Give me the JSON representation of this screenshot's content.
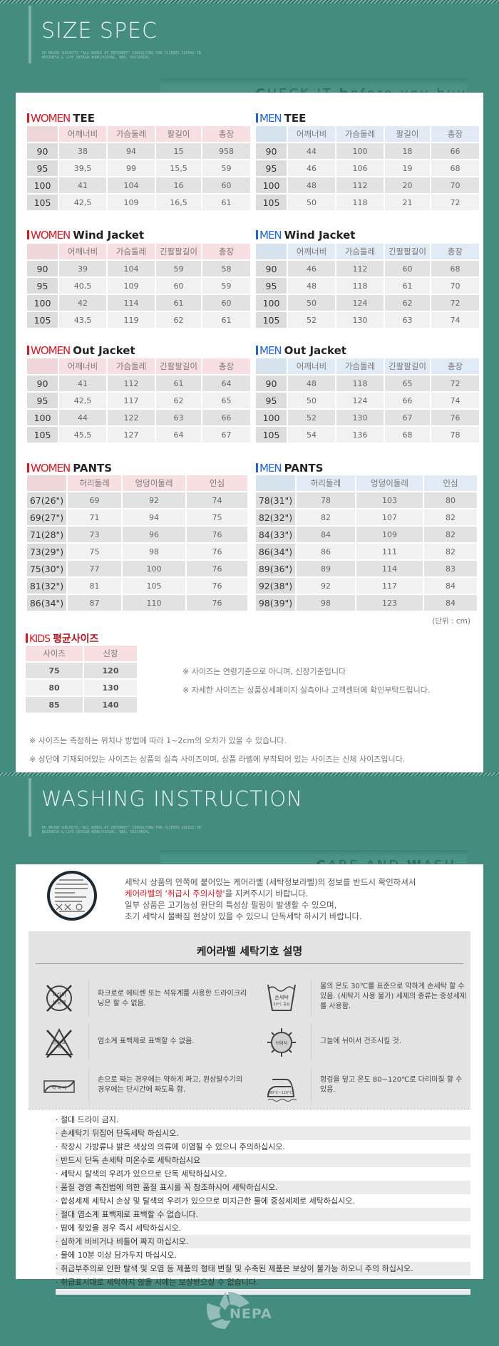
{
  "size_header": {
    "title": "SIZE SPEC",
    "tagline": "DO MAJOR SUBJECTS \"ALL WORKS AT INTERNET\" CONSULTING FOR CLIENTS SUCESS IN BUSINESS & LIFE DESIGN WORK/VISUAL, WEB, EDITORIAL",
    "band_first": "C",
    "band_mid": "HECK IT ",
    "band_b": "b",
    "band_rest": "efore you buy"
  },
  "tables": {
    "women_tee": {
      "group": "WOMEN",
      "name": "TEE",
      "headers": [
        "",
        "어깨너비",
        "가슴둘레",
        "팔길이",
        "총장"
      ],
      "rows": [
        [
          "90",
          "38",
          "94",
          "15",
          "958"
        ],
        [
          "95",
          "39,5",
          "99",
          "15,5",
          "59"
        ],
        [
          "100",
          "41",
          "104",
          "16",
          "60"
        ],
        [
          "105",
          "42,5",
          "109",
          "16,5",
          "61"
        ]
      ]
    },
    "men_tee": {
      "group": "MEN",
      "name": "TEE",
      "headers": [
        "",
        "어깨너비",
        "가슴둘레",
        "팔길이",
        "총장"
      ],
      "rows": [
        [
          "90",
          "44",
          "100",
          "18",
          "66"
        ],
        [
          "95",
          "46",
          "106",
          "19",
          "68"
        ],
        [
          "100",
          "48",
          "112",
          "20",
          "70"
        ],
        [
          "105",
          "50",
          "118",
          "21",
          "72"
        ]
      ]
    },
    "women_wind": {
      "group": "WOMEN",
      "name": "Wind Jacket",
      "headers": [
        "",
        "어깨너비",
        "가슴둘레",
        "긴팔팔길이",
        "총장"
      ],
      "rows": [
        [
          "90",
          "39",
          "104",
          "59",
          "58"
        ],
        [
          "95",
          "40,5",
          "109",
          "60",
          "59"
        ],
        [
          "100",
          "42",
          "114",
          "61",
          "60"
        ],
        [
          "105",
          "43,5",
          "119",
          "62",
          "61"
        ]
      ]
    },
    "men_wind": {
      "group": "MEN",
      "name": "Wind Jacket",
      "headers": [
        "",
        "어깨너비",
        "가슴둘레",
        "긴팔팔길이",
        "총장"
      ],
      "rows": [
        [
          "90",
          "46",
          "112",
          "60",
          "68"
        ],
        [
          "95",
          "48",
          "118",
          "61",
          "70"
        ],
        [
          "100",
          "50",
          "124",
          "62",
          "72"
        ],
        [
          "105",
          "52",
          "130",
          "63",
          "74"
        ]
      ]
    },
    "women_out": {
      "group": "WOMEN",
      "name": "Out Jacket",
      "headers": [
        "",
        "어깨너비",
        "가슴둘레",
        "긴팔팔길이",
        "총장"
      ],
      "rows": [
        [
          "90",
          "41",
          "112",
          "61",
          "64"
        ],
        [
          "95",
          "42,5",
          "117",
          "62",
          "65"
        ],
        [
          "100",
          "44",
          "122",
          "63",
          "66"
        ],
        [
          "105",
          "45,5",
          "127",
          "64",
          "67"
        ]
      ]
    },
    "men_out": {
      "group": "MEN",
      "name": "Out Jacket",
      "headers": [
        "",
        "어깨너비",
        "가슴둘레",
        "긴팔팔길이",
        "총장"
      ],
      "rows": [
        [
          "90",
          "48",
          "118",
          "65",
          "72"
        ],
        [
          "95",
          "50",
          "124",
          "66",
          "74"
        ],
        [
          "100",
          "52",
          "130",
          "67",
          "76"
        ],
        [
          "105",
          "54",
          "136",
          "68",
          "78"
        ]
      ]
    },
    "women_pants": {
      "group": "WOMEN",
      "name": "PANTS",
      "headers": [
        "",
        "허리둘레",
        "엉덩이둘레",
        "인심"
      ],
      "rows": [
        [
          "67(26\")",
          "69",
          "92",
          "74"
        ],
        [
          "69(27\")",
          "71",
          "94",
          "75"
        ],
        [
          "71(28\")",
          "73",
          "96",
          "76"
        ],
        [
          "73(29\")",
          "75",
          "98",
          "76"
        ],
        [
          "75(30\")",
          "77",
          "100",
          "76"
        ],
        [
          "81(32\")",
          "81",
          "105",
          "76"
        ],
        [
          "86(34\")",
          "87",
          "110",
          "76"
        ]
      ]
    },
    "men_pants": {
      "group": "MEN",
      "name": "PANTS",
      "headers": [
        "",
        "허리둘레",
        "엉덩이둘레",
        "인심"
      ],
      "rows": [
        [
          "78(31\")",
          "78",
          "103",
          "80"
        ],
        [
          "82(32\")",
          "82",
          "107",
          "82"
        ],
        [
          "84(33\")",
          "84",
          "109",
          "82"
        ],
        [
          "86(34\")",
          "86",
          "111",
          "82"
        ],
        [
          "89(36\")",
          "89",
          "114",
          "83"
        ],
        [
          "92(38\")",
          "92",
          "117",
          "84"
        ],
        [
          "98(39\")",
          "98",
          "123",
          "84"
        ]
      ]
    },
    "kids": {
      "group": "KIDS",
      "name": "평균사이즈",
      "headers": [
        "사이즈",
        "신장"
      ],
      "rows": [
        [
          "75",
          "120"
        ],
        [
          "80",
          "130"
        ],
        [
          "85",
          "140"
        ]
      ]
    }
  },
  "unit_label": "(단위 : cm)",
  "kids_notes": [
    "※ 사이즈는 연령기준으로 아니며, 신장기준입니다",
    "※ 자세한 사이즈는 상품상세페이지 실측이나 고객센터에 확인부탁드립니다."
  ],
  "bottom_notes": [
    "※ 사이즈는 측정하는 위치나 방법에 따라 1~2cm의 오차가 있을 수 있습니다.",
    "※ 상단에 기재되어있는 사이즈는 상품의 실측 사이즈이며, 상품 라벨에 부착되어 있는 사이즈는 신체 사이즈입니다."
  ],
  "wash_header": {
    "title": "WASHING INSTRUCTION",
    "tagline": "DO MAJOR SUBJECTS \"ALL WORKS AT INTERNET\" CONSULTING FOR CLIENTS SUCESS IN BUSINESS & LIFE DESIGN WORK/VISUAL, WEB, EDITORIAL",
    "band_c": "C",
    "band_are": "ARE AND ",
    "band_w": "W",
    "band_ash": "ASH"
  },
  "wash_intro": {
    "line1": "세탁시 상품의 안쪽에 붙어있는 케어라벨 (세탁정보라벨)의 정보를 반드시 확인하셔서",
    "line2_red": "케어라벨의 '취급시 주의사항'",
    "line2_rest": "을 지켜주시기 바랍니다.",
    "line3": "일부 상품은 고기능성 원단의 특성상 필링이 발생할 수 있으며,",
    "line4": "초기 세탁시 물빠짐 현상이 있을 수 있으니 단독세탁 하시기 바랍니다."
  },
  "symbols": {
    "title": "케어라벨 세탁기호 설명",
    "items": [
      {
        "icon": "no-dry-clean-icon",
        "icon_text": "드라이 석유계",
        "text": "파크로로 에티렌 또는 석유계를 사용한 드라이크리닝은 할 수 없음."
      },
      {
        "icon": "no-bleach-icon",
        "icon_text": "염소 표백",
        "text": "염소계 표백제로 표백할 수 없음."
      },
      {
        "icon": "gentle-wring-icon",
        "icon_text": "약 하 게",
        "text": "손으로 짜는 경우에는 약하게 짜고, 원상탈수기의 경우에는 단시간에 짜도록 함."
      },
      {
        "icon": "hand-wash-icon",
        "icon_text": "손세탁",
        "icon_sub": "30°C 중성",
        "text": "물의 온도 30℃를 표준으로 약하게 손세탁 할 수 있음. (세탁기 사용 불가) 세제의 종류는 중성세제를 사용함."
      },
      {
        "icon": "shade-dry-flat-icon",
        "icon_text": "뉘어서",
        "text": "그늘에 뉘어서 건조시킬 것."
      },
      {
        "icon": "iron-icon",
        "icon_text": "80°C~120°C",
        "text": "헝겊을 덮고 온도 80~120℃로 다리미질 할 수 있음."
      }
    ]
  },
  "care_list": [
    "·  절대 드라이 금지.",
    "·  손세탁기 뒤집어 단독세탁 하십시오.",
    "·  착장시 가방류나 밝은 색상의 의류에 이염될 수 있으니 주의하십시오.",
    "·  반드시 단독 손세탁 미온수로 세탁하십시요",
    "·  세탁시 탈색의 우려가 있으므로 단독 세탁하십시오.",
    "·  품질 경영 촉진법에 의한 품질 표시를 꼭 참조하시어 세탁하십시오.",
    "·  합성세제 세탁시 손상 및 탈색의 우려가 있으므로 미지근한 물에 중성세제로 세탁하십시오.",
    "·  절대 염소계 표백제로 표백할 수 없습니다.",
    "·  땀에 젖었을 경우 즉시 세탁하십시오.",
    "·  심하게 비비거나 비틀어 짜지 마십시오.",
    "·  물에 10분 이상 담가두지 마십시오.",
    "·  취급부주의로 인한 탈색 및 오염 등 제품의 형태 변질 및 수축된 제품은 보상이 불가능 하오니 주의 하십시오.",
    "·  취급표시대로 세탁하지 않을 시에는 보상받으실 수 없습니다.",
    ""
  ],
  "brand": {
    "logo_text": "NEPA"
  },
  "colors": {
    "background": "#448c80",
    "women_accent": "#e3141e",
    "men_accent": "#1f63e0",
    "kids_title": "#b5121b"
  }
}
